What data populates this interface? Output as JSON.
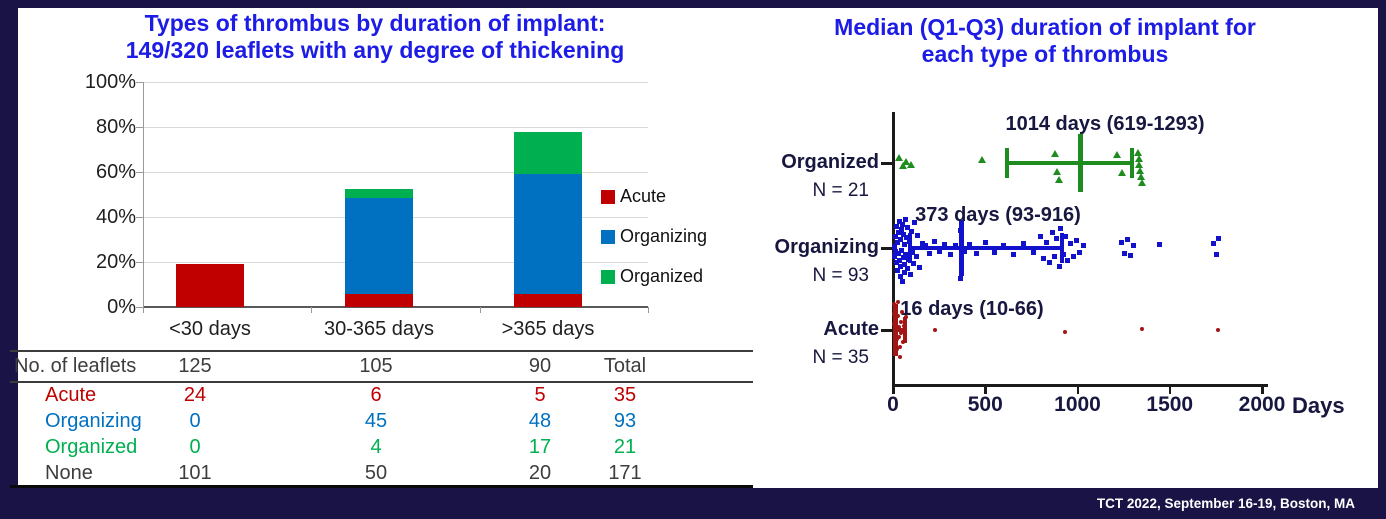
{
  "slide": {
    "footer_text": "TCT 2022, September 16-19, Boston, MA",
    "background_color": "#1a1346",
    "panel_color": "#ffffff",
    "title_color": "#1c1ce6"
  },
  "chart_data": [
    {
      "id": "thrombus-types-by-duration",
      "type": "bar",
      "stacked": true,
      "percent": true,
      "title_lines": [
        "Types of thrombus by duration of implant:",
        "149/320 leaflets with any degree of thickening"
      ],
      "categories": [
        "<30 days",
        "30-365 days",
        ">365 days"
      ],
      "series": [
        {
          "name": "Acute",
          "color": "#c00000",
          "values": [
            19.2,
            5.7,
            5.6
          ]
        },
        {
          "name": "Organizing",
          "color": "#0070c0",
          "values": [
            0,
            42.9,
            53.3
          ]
        },
        {
          "name": "Organized",
          "color": "#00b050",
          "values": [
            0,
            3.8,
            18.9
          ]
        }
      ],
      "ylim": [
        0,
        100
      ],
      "yticks": [
        "0%",
        "20%",
        "40%",
        "60%",
        "80%",
        "100%"
      ],
      "grid": true,
      "legend_position": "right",
      "legend": [
        "Acute",
        "Organizing",
        "Organized"
      ],
      "table": {
        "header": {
          "label": "No. of leaflets",
          "values": [
            "125",
            "105",
            "90",
            "Total"
          ]
        },
        "rows": [
          {
            "label": "Acute",
            "color": "#c00000",
            "values": [
              "24",
              "6",
              "5",
              "35"
            ]
          },
          {
            "label": "Organizing",
            "color": "#0070c0",
            "values": [
              "0",
              "45",
              "48",
              "93"
            ]
          },
          {
            "label": "Organized",
            "color": "#00b050",
            "values": [
              "0",
              "4",
              "17",
              "21"
            ]
          },
          {
            "label": "None",
            "color": "#3d3d3d",
            "values": [
              "101",
              "50",
              "20",
              "171"
            ]
          }
        ]
      }
    },
    {
      "id": "median-duration-per-thrombus-type",
      "type": "scatter",
      "title_lines": [
        "Median (Q1-Q3) duration of implant for",
        "each type of thrombus"
      ],
      "xlabel": "Days",
      "xlim": [
        0,
        2000
      ],
      "xticks": [
        "0",
        "500",
        "1000",
        "1500",
        "2000"
      ],
      "series": [
        {
          "name": "Organized",
          "n_label": "N = 21",
          "color": "#1e8c1e",
          "marker": "triangle",
          "median": 1014,
          "q1": 619,
          "q3": 1293,
          "annotation": "1014 days (619-1293)",
          "points": [
            [
              30,
              -5
            ],
            [
              52,
              3
            ],
            [
              72,
              -1
            ],
            [
              95,
              2
            ],
            [
              480,
              -3
            ],
            [
              878,
              -9
            ],
            [
              890,
              9
            ],
            [
              902,
              17
            ],
            [
              1215,
              -8
            ],
            [
              1240,
              10
            ],
            [
              1326,
              -10
            ],
            [
              1331,
              -4
            ],
            [
              1336,
              2
            ],
            [
              1341,
              8
            ],
            [
              1346,
              14
            ],
            [
              1351,
              20
            ]
          ]
        },
        {
          "name": "Organizing",
          "n_label": "N = 93",
          "color": "#1212cc",
          "marker": "square",
          "median": 373,
          "q1": 93,
          "q3": 916,
          "annotation": "373 days (93-916)",
          "points": [
            [
              8,
              -2
            ],
            [
              10,
              8
            ],
            [
              12,
              -12
            ],
            [
              15,
              3
            ],
            [
              18,
              -22
            ],
            [
              20,
              14
            ],
            [
              22,
              -6
            ],
            [
              25,
              22
            ],
            [
              28,
              -16
            ],
            [
              30,
              5
            ],
            [
              33,
              -27
            ],
            [
              35,
              12
            ],
            [
              38,
              28
            ],
            [
              40,
              -9
            ],
            [
              43,
              18
            ],
            [
              45,
              -19
            ],
            [
              48,
              2
            ],
            [
              50,
              33
            ],
            [
              52,
              -24
            ],
            [
              55,
              9
            ],
            [
              58,
              -14
            ],
            [
              60,
              24
            ],
            [
              63,
              -4
            ],
            [
              65,
              16
            ],
            [
              68,
              -29
            ],
            [
              70,
              6
            ],
            [
              75,
              -11
            ],
            [
              78,
              20
            ],
            [
              80,
              -21
            ],
            [
              85,
              11
            ],
            [
              90,
              -7
            ],
            [
              95,
              26
            ],
            [
              100,
              -17
            ],
            [
              105,
              4
            ],
            [
              112,
              15
            ],
            [
              118,
              -26
            ],
            [
              125,
              8
            ],
            [
              135,
              -13
            ],
            [
              145,
              19
            ],
            [
              158,
              -5
            ],
            [
              178,
              -3
            ],
            [
              200,
              5
            ],
            [
              225,
              -7
            ],
            [
              252,
              3
            ],
            [
              280,
              -4
            ],
            [
              310,
              6
            ],
            [
              338,
              -3
            ],
            [
              365,
              30
            ],
            [
              368,
              -18
            ],
            [
              385,
              3
            ],
            [
              415,
              -4
            ],
            [
              455,
              5
            ],
            [
              500,
              -6
            ],
            [
              548,
              4
            ],
            [
              600,
              -3
            ],
            [
              652,
              6
            ],
            [
              705,
              -5
            ],
            [
              760,
              4
            ],
            [
              800,
              -12
            ],
            [
              815,
              10
            ],
            [
              832,
              -6
            ],
            [
              848,
              14
            ],
            [
              862,
              -16
            ],
            [
              875,
              8
            ],
            [
              888,
              -10
            ],
            [
              900,
              18
            ],
            [
              910,
              -20
            ],
            [
              922,
              6
            ],
            [
              935,
              -12
            ],
            [
              948,
              12
            ],
            [
              962,
              -5
            ],
            [
              978,
              8
            ],
            [
              995,
              -8
            ],
            [
              1012,
              4
            ],
            [
              1030,
              -3
            ],
            [
              1240,
              -6
            ],
            [
              1256,
              5
            ],
            [
              1272,
              -9
            ],
            [
              1288,
              7
            ],
            [
              1302,
              -3
            ],
            [
              1442,
              -4
            ],
            [
              1735,
              -5
            ],
            [
              1756,
              6
            ],
            [
              1766,
              -10
            ]
          ]
        },
        {
          "name": "Acute",
          "n_label": "N = 35",
          "color": "#a31616",
          "marker": "dot",
          "median": 16,
          "q1": 10,
          "q3": 66,
          "annotation": "16 days (10-66)",
          "points": [
            [
              4,
              -26
            ],
            [
              6,
              -16
            ],
            [
              8,
              -6
            ],
            [
              10,
              4
            ],
            [
              12,
              14
            ],
            [
              14,
              24
            ],
            [
              16,
              -21
            ],
            [
              18,
              -11
            ],
            [
              20,
              -1
            ],
            [
              22,
              9
            ],
            [
              24,
              19
            ],
            [
              26,
              -28
            ],
            [
              28,
              -14
            ],
            [
              30,
              -3
            ],
            [
              33,
              7
            ],
            [
              36,
              17
            ],
            [
              39,
              27
            ],
            [
              43,
              -8
            ],
            [
              46,
              3
            ],
            [
              50,
              -18
            ],
            [
              55,
              12
            ],
            [
              60,
              -4
            ],
            [
              66,
              8
            ],
            [
              70,
              -13
            ],
            [
              230,
              0
            ],
            [
              930,
              2
            ],
            [
              1350,
              -1
            ],
            [
              1760,
              0
            ]
          ]
        }
      ]
    }
  ]
}
